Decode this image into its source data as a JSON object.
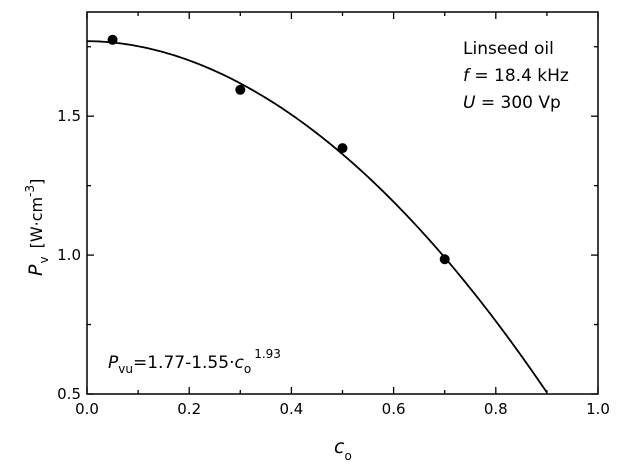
{
  "chart_data": {
    "type": "scatter",
    "xlim": [
      0.0,
      1.0
    ],
    "ylim": [
      0.5,
      1.875
    ],
    "x_ticks": [
      0.0,
      0.2,
      0.4,
      0.6,
      0.8,
      1.0
    ],
    "x_tick_labels": [
      "0.0",
      "0.2",
      "0.4",
      "0.6",
      "0.8",
      "1.0"
    ],
    "y_ticks": [
      0.5,
      1.0,
      1.5
    ],
    "y_tick_labels": [
      "0.5",
      "1.0",
      "1.5"
    ],
    "grid": false,
    "xlabel": {
      "symbol": "c",
      "subscript": "o"
    },
    "ylabel": {
      "symbol": "P",
      "subscript": "v",
      "unit": "[W·cm",
      "unit_exp": "-3",
      "unit_close": "]"
    },
    "points": [
      {
        "x": 0.05,
        "y": 1.775
      },
      {
        "x": 0.3,
        "y": 1.595
      },
      {
        "x": 0.5,
        "y": 1.385
      },
      {
        "x": 0.7,
        "y": 0.985
      }
    ],
    "fit": {
      "a": 1.77,
      "b": 1.55,
      "n": 1.93,
      "x_range": [
        0.0,
        0.9
      ]
    },
    "annotation_lines": {
      "line1": "Linseed oil",
      "f_symbol": "f",
      "f_rest": " = 18.4 kHz",
      "u_symbol": "U",
      "u_rest": " = 300 Vp"
    },
    "equation": {
      "lhs_symbol": "P",
      "lhs_sub": "vu",
      "mid": "=1.77-1.55·",
      "var_symbol": "c",
      "var_sub": "o",
      "exponent": "1.93"
    }
  }
}
